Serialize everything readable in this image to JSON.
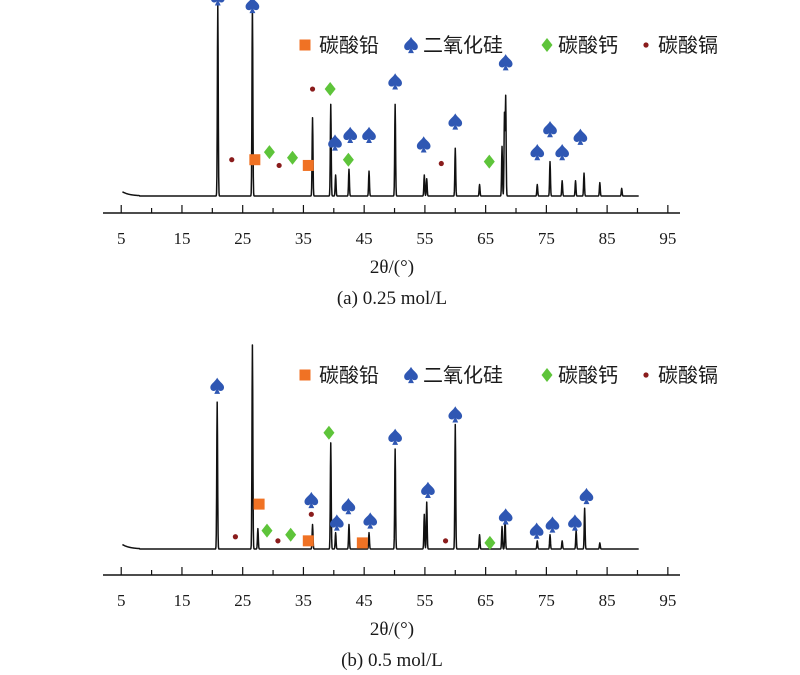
{
  "colors": {
    "lead_carbonate": "#f07224",
    "silica": "#2f57b3",
    "calcium_carbonate": "#5ec43a",
    "cadmium_carbonate": "#8a1c1c",
    "line": "#111111"
  },
  "icons": {
    "lead_carbonate": "square-marker-icon",
    "silica": "spade-marker-icon",
    "calcium_carbonate": "diamond-marker-icon",
    "cadmium_carbonate": "dot-marker-icon"
  },
  "chart_data": [
    {
      "type": "line",
      "panel": "a",
      "caption": "(a) 0.25 mol/L",
      "xlabel": "2θ/(°)",
      "xlim": [
        2,
        97
      ],
      "xticks": [
        5,
        15,
        25,
        35,
        45,
        55,
        65,
        75,
        85,
        95
      ],
      "legend": {
        "position": "top-right",
        "entries": [
          {
            "key": "lead_carbonate",
            "label": "碳酸铅"
          },
          {
            "key": "silica",
            "label": "二氧化硅"
          },
          {
            "key": "calcium_carbonate",
            "label": "碳酸钙"
          },
          {
            "key": "cadmium_carbonate",
            "label": "碳酸镉"
          }
        ]
      },
      "peaks": [
        {
          "x": 20.9,
          "y": 100
        },
        {
          "x": 26.6,
          "y": 100
        },
        {
          "x": 36.5,
          "y": 41
        },
        {
          "x": 39.5,
          "y": 48
        },
        {
          "x": 40.3,
          "y": 11
        },
        {
          "x": 42.5,
          "y": 14
        },
        {
          "x": 45.8,
          "y": 13
        },
        {
          "x": 50.1,
          "y": 48
        },
        {
          "x": 54.9,
          "y": 11
        },
        {
          "x": 55.3,
          "y": 9
        },
        {
          "x": 60.0,
          "y": 25
        },
        {
          "x": 64.0,
          "y": 6
        },
        {
          "x": 67.7,
          "y": 26
        },
        {
          "x": 68.1,
          "y": 43
        },
        {
          "x": 68.3,
          "y": 52
        },
        {
          "x": 73.5,
          "y": 6
        },
        {
          "x": 75.6,
          "y": 18
        },
        {
          "x": 77.6,
          "y": 8
        },
        {
          "x": 79.8,
          "y": 8
        },
        {
          "x": 81.2,
          "y": 12
        },
        {
          "x": 83.8,
          "y": 7
        },
        {
          "x": 87.4,
          "y": 4
        }
      ],
      "markers": [
        {
          "x": 20.9,
          "y": 104,
          "phase": "silica"
        },
        {
          "x": 26.6,
          "y": 100,
          "phase": "silica"
        },
        {
          "x": 23.2,
          "y": 19,
          "phase": "cadmium_carbonate"
        },
        {
          "x": 27.0,
          "y": 19,
          "phase": "lead_carbonate"
        },
        {
          "x": 29.4,
          "y": 23,
          "phase": "calcium_carbonate"
        },
        {
          "x": 31.0,
          "y": 16,
          "phase": "cadmium_carbonate"
        },
        {
          "x": 33.2,
          "y": 20,
          "phase": "calcium_carbonate"
        },
        {
          "x": 35.8,
          "y": 16,
          "phase": "lead_carbonate"
        },
        {
          "x": 36.5,
          "y": 56,
          "phase": "cadmium_carbonate"
        },
        {
          "x": 39.4,
          "y": 56,
          "phase": "calcium_carbonate"
        },
        {
          "x": 40.2,
          "y": 28,
          "phase": "silica"
        },
        {
          "x": 42.4,
          "y": 19,
          "phase": "calcium_carbonate"
        },
        {
          "x": 42.7,
          "y": 32,
          "phase": "silica"
        },
        {
          "x": 45.8,
          "y": 32,
          "phase": "silica"
        },
        {
          "x": 50.1,
          "y": 60,
          "phase": "silica"
        },
        {
          "x": 54.8,
          "y": 27,
          "phase": "silica"
        },
        {
          "x": 57.7,
          "y": 17,
          "phase": "cadmium_carbonate"
        },
        {
          "x": 60.0,
          "y": 39,
          "phase": "silica"
        },
        {
          "x": 65.6,
          "y": 18,
          "phase": "calcium_carbonate"
        },
        {
          "x": 68.3,
          "y": 70,
          "phase": "silica"
        },
        {
          "x": 73.5,
          "y": 23,
          "phase": "silica"
        },
        {
          "x": 75.6,
          "y": 35,
          "phase": "silica"
        },
        {
          "x": 77.6,
          "y": 23,
          "phase": "silica"
        },
        {
          "x": 80.6,
          "y": 31,
          "phase": "silica"
        }
      ]
    },
    {
      "type": "line",
      "panel": "b",
      "caption": "(b) 0.5 mol/L",
      "xlabel": "2θ/(°)",
      "xlim": [
        2,
        97
      ],
      "xticks": [
        5,
        15,
        25,
        35,
        45,
        55,
        65,
        75,
        85,
        95
      ],
      "legend": {
        "position": "top-right",
        "entries": [
          {
            "key": "lead_carbonate",
            "label": "碳酸铅"
          },
          {
            "key": "silica",
            "label": "二氧化硅"
          },
          {
            "key": "calcium_carbonate",
            "label": "碳酸钙"
          },
          {
            "key": "cadmium_carbonate",
            "label": "碳酸镉"
          }
        ]
      },
      "peaks": [
        {
          "x": 20.8,
          "y": 72
        },
        {
          "x": 26.6,
          "y": 100
        },
        {
          "x": 27.5,
          "y": 10
        },
        {
          "x": 36.5,
          "y": 12
        },
        {
          "x": 39.5,
          "y": 52
        },
        {
          "x": 40.3,
          "y": 8
        },
        {
          "x": 42.5,
          "y": 12
        },
        {
          "x": 45.8,
          "y": 8
        },
        {
          "x": 50.1,
          "y": 49
        },
        {
          "x": 54.9,
          "y": 17
        },
        {
          "x": 55.3,
          "y": 23
        },
        {
          "x": 60.0,
          "y": 61
        },
        {
          "x": 64.0,
          "y": 7
        },
        {
          "x": 67.7,
          "y": 11
        },
        {
          "x": 68.2,
          "y": 14
        },
        {
          "x": 73.5,
          "y": 4
        },
        {
          "x": 75.6,
          "y": 7
        },
        {
          "x": 77.6,
          "y": 4
        },
        {
          "x": 79.9,
          "y": 9
        },
        {
          "x": 81.3,
          "y": 20
        },
        {
          "x": 83.8,
          "y": 3
        }
      ],
      "markers": [
        {
          "x": 20.8,
          "y": 80,
          "phase": "silica"
        },
        {
          "x": 23.8,
          "y": 6,
          "phase": "cadmium_carbonate"
        },
        {
          "x": 27.7,
          "y": 22,
          "phase": "lead_carbonate"
        },
        {
          "x": 29.0,
          "y": 9,
          "phase": "calcium_carbonate"
        },
        {
          "x": 30.8,
          "y": 4,
          "phase": "cadmium_carbonate"
        },
        {
          "x": 32.9,
          "y": 7,
          "phase": "calcium_carbonate"
        },
        {
          "x": 35.8,
          "y": 4,
          "phase": "lead_carbonate"
        },
        {
          "x": 36.3,
          "y": 17,
          "phase": "cadmium_carbonate"
        },
        {
          "x": 36.3,
          "y": 24,
          "phase": "silica"
        },
        {
          "x": 39.2,
          "y": 57,
          "phase": "calcium_carbonate"
        },
        {
          "x": 40.5,
          "y": 13,
          "phase": "silica"
        },
        {
          "x": 42.4,
          "y": 21,
          "phase": "silica"
        },
        {
          "x": 44.7,
          "y": 3,
          "phase": "lead_carbonate"
        },
        {
          "x": 46.0,
          "y": 14,
          "phase": "silica"
        },
        {
          "x": 50.1,
          "y": 55,
          "phase": "silica"
        },
        {
          "x": 55.5,
          "y": 29,
          "phase": "silica"
        },
        {
          "x": 58.4,
          "y": 4,
          "phase": "cadmium_carbonate"
        },
        {
          "x": 60.0,
          "y": 66,
          "phase": "silica"
        },
        {
          "x": 65.7,
          "y": 3,
          "phase": "calcium_carbonate"
        },
        {
          "x": 68.3,
          "y": 16,
          "phase": "silica"
        },
        {
          "x": 73.4,
          "y": 9,
          "phase": "silica"
        },
        {
          "x": 76.0,
          "y": 12,
          "phase": "silica"
        },
        {
          "x": 79.7,
          "y": 13,
          "phase": "silica"
        },
        {
          "x": 81.6,
          "y": 26,
          "phase": "silica"
        }
      ]
    }
  ]
}
